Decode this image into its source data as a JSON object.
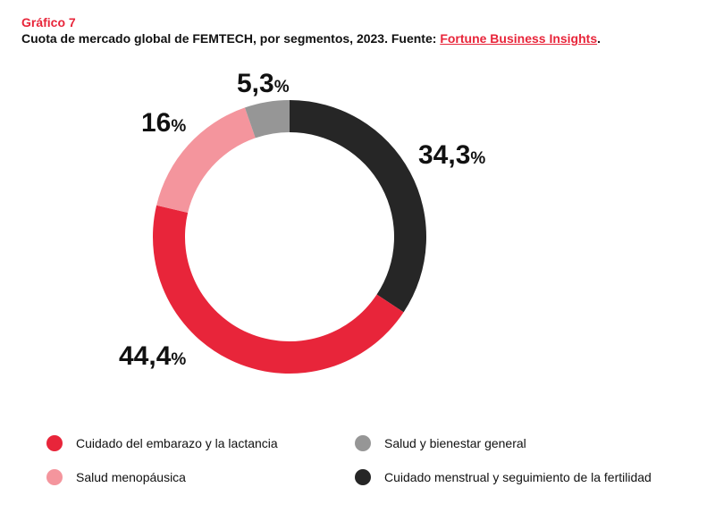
{
  "header": {
    "kicker": "Gráfico 7",
    "subtitle_prefix": "Cuota de mercado global de FEMTECH, por segmentos, 2023. Fuente: ",
    "source_link": "Fortune Business Insights",
    "subtitle_suffix": "."
  },
  "chart_data": {
    "type": "pie",
    "style": "donut",
    "title": "Cuota de mercado global de FEMTECH, por segmentos, 2023",
    "unit": "%",
    "series": [
      {
        "name": "Cuidado menstrual y seguimiento de la fertilidad",
        "value": 34.3,
        "num": "34,3",
        "pct": "%",
        "color": "#262626"
      },
      {
        "name": "Cuidado del embarazo y la lactancia",
        "value": 44.4,
        "num": "44,4",
        "pct": "%",
        "color": "#e8253a"
      },
      {
        "name": "Salud menopáusica",
        "value": 16,
        "num": "16",
        "pct": "%",
        "color": "#f4959d"
      },
      {
        "name": "Salud y bienestar general",
        "value": 5.3,
        "num": "5,3",
        "pct": "%",
        "color": "#969696"
      }
    ]
  },
  "legend": {
    "items": [
      {
        "label": "Cuidado del embarazo y la lactancia",
        "color": "#e8253a"
      },
      {
        "label": "Salud y bienestar general",
        "color": "#969696"
      },
      {
        "label": "Salud menopáusica",
        "color": "#f4959d"
      },
      {
        "label": "Cuidado menstrual y seguimiento de la fertilidad",
        "color": "#262626"
      }
    ]
  }
}
